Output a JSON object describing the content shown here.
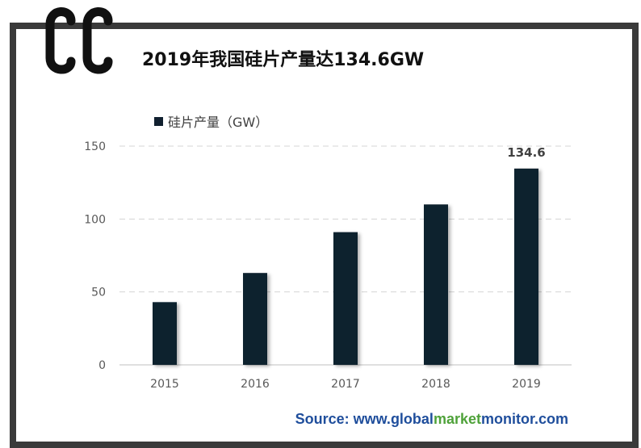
{
  "title": "2019年我国硅片产量达134.6GW",
  "source": {
    "prefix": "Source: www.",
    "part1": "global",
    "part2": "market",
    "part3": "monitor",
    "suffix": ".com"
  },
  "colors": {
    "bar": "#11202f",
    "frame": "#3a3a3a",
    "source_text": "#1f4e9c",
    "source_highlight": "#4fa23a"
  },
  "chart_data": {
    "type": "bar",
    "title": "2019年我国硅片产量达134.6GW",
    "categories": [
      "2015",
      "2016",
      "2017",
      "2018",
      "2019"
    ],
    "series": [
      {
        "name": "硅片产量（GW）",
        "values": [
          43,
          63,
          91,
          110,
          134.6
        ]
      }
    ],
    "data_labels": [
      {
        "category": "2019",
        "text": "134.6"
      }
    ],
    "yticks": [
      0,
      50,
      100,
      150
    ],
    "ylim": [
      0,
      150
    ],
    "xlabel": "",
    "ylabel": "",
    "grid": "horizontal-dashed",
    "legend_position": "top-left"
  }
}
